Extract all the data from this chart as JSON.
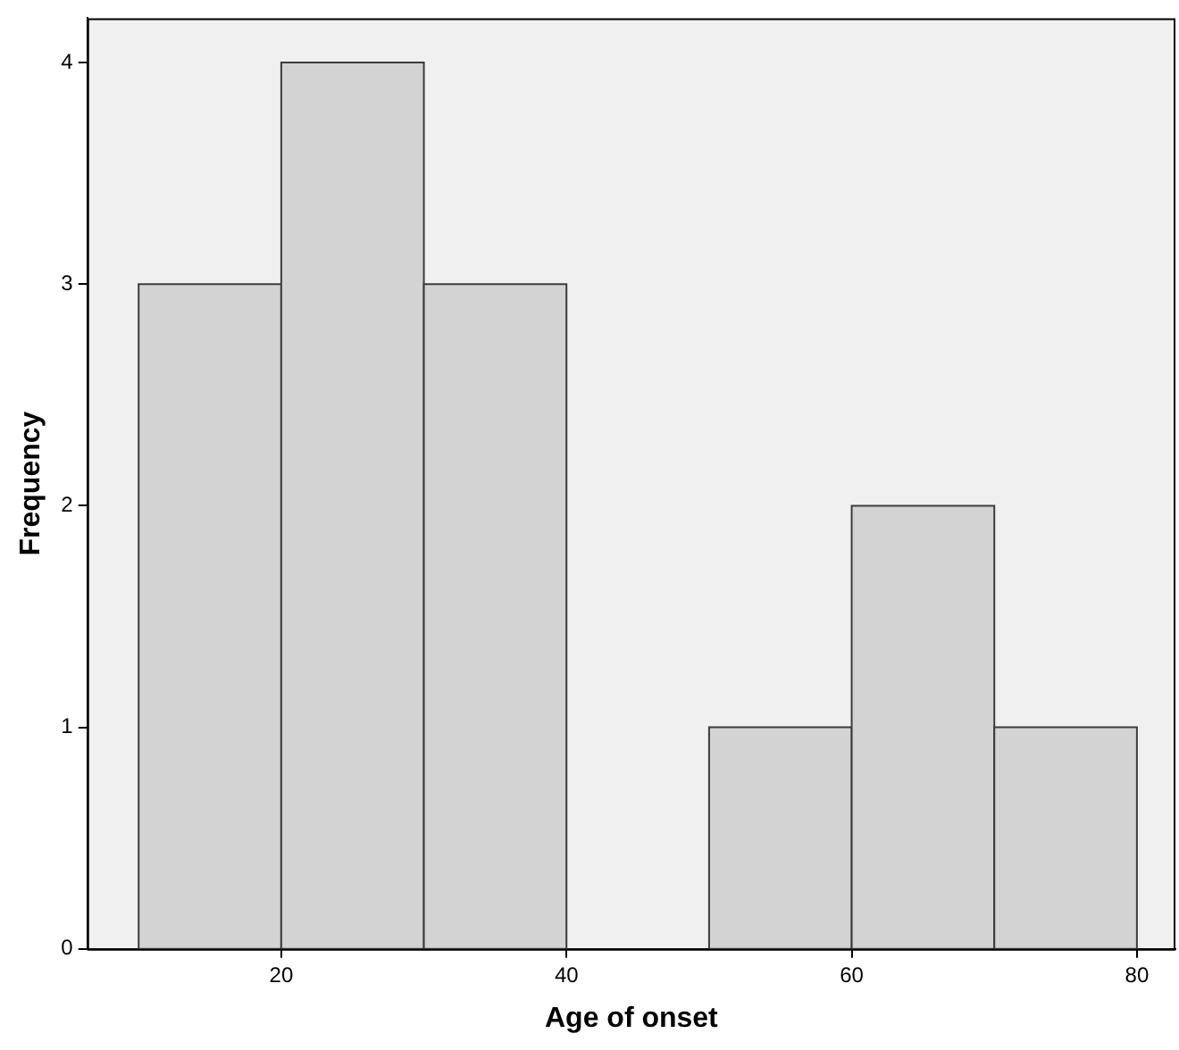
{
  "chart_data": {
    "type": "histogram",
    "xlabel": "Age of onset",
    "ylabel": "Frequency",
    "bins": [
      10,
      20,
      30,
      40,
      50,
      60,
      70,
      80
    ],
    "values": [
      3,
      4,
      3,
      0,
      1,
      2,
      1
    ],
    "color": "#d3d3d3",
    "xlim": [
      6.4,
      82.7
    ],
    "xticks": [
      20,
      40,
      60,
      80
    ],
    "ylim": [
      0,
      4.2
    ],
    "yticks": [
      0,
      1,
      2,
      3,
      4
    ]
  }
}
